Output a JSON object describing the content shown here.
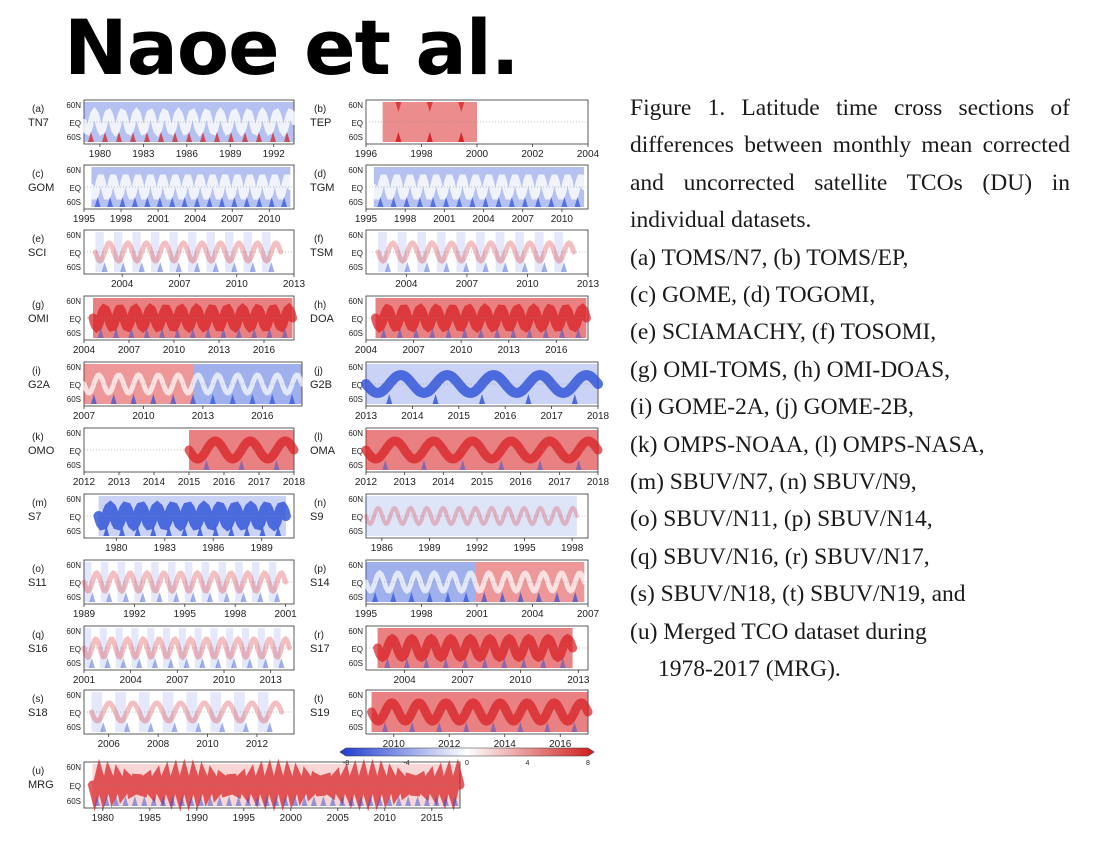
{
  "slide_title": "Naoe et al.",
  "caption": {
    "lead": "Figure 1. Latitude time cross sections of differences between monthly mean corrected and uncorrected satellite TCOs (DU) in individual datasets.",
    "items": [
      "(a) TOMS/N7, (b) TOMS/EP,",
      "(c) GOME, (d) TOGOMI,",
      "(e) SCIAMACHY, (f) TOSOMI,",
      "(g) OMI-TOMS, (h) OMI-DOAS,",
      "(i) GOME-2A, (j) GOME-2B,",
      "(k) OMPS-NOAA, (l) OMPS-NASA,",
      "(m) SBUV/N7, (n) SBUV/N9,",
      "(o) SBUV/N11, (p) SBUV/N14,",
      "(q) SBUV/N16, (r) SBUV/N17,",
      "(s) SBUV/N18, (t) SBUV/N19, and",
      "(u) Merged TCO dataset during"
    ],
    "last_line": "1978-2017 (MRG)."
  },
  "colors": {
    "positive": "#d7191c",
    "negative": "#2b50d8",
    "neutral": "#ffffff"
  },
  "chart_data": {
    "type": "heatmap",
    "lat_ticks": [
      "60N",
      "EQ",
      "60S"
    ],
    "colorbar": {
      "ticks": [
        "-8",
        "-4",
        "0",
        "4",
        "8"
      ],
      "range": [
        -8,
        8
      ]
    },
    "panels": [
      {
        "id": "(a)",
        "name": "TN7",
        "x_range": [
          1978.9,
          1993.4
        ],
        "data_range": [
          1978.9,
          1993.4
        ],
        "ticks": [
          "1980",
          "1983",
          "1986",
          "1989",
          "1992"
        ],
        "tick_values": [
          1980,
          1983,
          1986,
          1989,
          1992
        ]
      },
      {
        "id": "(b)",
        "name": "TEP",
        "x_range": [
          1996,
          2004
        ],
        "data_range": [
          1996.6,
          2000
        ],
        "ticks": [
          "1996",
          "1998",
          "2000",
          "2002",
          "2004"
        ],
        "tick_values": [
          1996,
          1998,
          2000,
          2002,
          2004
        ]
      },
      {
        "id": "(c)",
        "name": "GOM",
        "x_range": [
          1995,
          2012
        ],
        "data_range": [
          1995.6,
          2011.7
        ],
        "ticks": [
          "1995",
          "1998",
          "2001",
          "2004",
          "2007",
          "2010"
        ],
        "tick_values": [
          1995,
          1998,
          2001,
          2004,
          2007,
          2010
        ]
      },
      {
        "id": "(d)",
        "name": "TGM",
        "x_range": [
          1995,
          2012
        ],
        "data_range": [
          1995.6,
          2011.7
        ],
        "ticks": [
          "1995",
          "1998",
          "2001",
          "2004",
          "2007",
          "2010"
        ],
        "tick_values": [
          1995,
          1998,
          2001,
          2004,
          2007,
          2010
        ]
      },
      {
        "id": "(e)",
        "name": "SCI",
        "x_range": [
          2002,
          2013
        ],
        "data_range": [
          2002.6,
          2012.3
        ],
        "ticks": [
          "2004",
          "2007",
          "2010",
          "2013"
        ],
        "tick_values": [
          2004,
          2007,
          2010,
          2013
        ]
      },
      {
        "id": "(f)",
        "name": "TSM",
        "x_range": [
          2002,
          2013
        ],
        "data_range": [
          2002.6,
          2012.3
        ],
        "ticks": [
          "2004",
          "2007",
          "2010",
          "2013"
        ],
        "tick_values": [
          2004,
          2007,
          2010,
          2013
        ]
      },
      {
        "id": "(g)",
        "name": "OMI",
        "x_range": [
          2004,
          2018
        ],
        "data_range": [
          2004.6,
          2017.9
        ],
        "ticks": [
          "2004",
          "2007",
          "2010",
          "2013",
          "2016"
        ],
        "tick_values": [
          2004,
          2007,
          2010,
          2013,
          2016
        ]
      },
      {
        "id": "(h)",
        "name": "DOA",
        "x_range": [
          2004,
          2018
        ],
        "data_range": [
          2004.6,
          2017.9
        ],
        "ticks": [
          "2004",
          "2007",
          "2010",
          "2013",
          "2016"
        ],
        "tick_values": [
          2004,
          2007,
          2010,
          2013,
          2016
        ]
      },
      {
        "id": "(i)",
        "name": "G2A",
        "x_range": [
          2007,
          2018
        ],
        "data_range": [
          2007,
          2018
        ],
        "ticks": [
          "2007",
          "2010",
          "2013",
          "2016"
        ],
        "tick_values": [
          2007,
          2010,
          2013,
          2016
        ]
      },
      {
        "id": "(j)",
        "name": "G2B",
        "x_range": [
          2013,
          2018
        ],
        "data_range": [
          2013,
          2018
        ],
        "ticks": [
          "2013",
          "2014",
          "2015",
          "2016",
          "2017",
          "2018"
        ],
        "tick_values": [
          2013,
          2014,
          2015,
          2016,
          2017,
          2018
        ]
      },
      {
        "id": "(k)",
        "name": "OMO",
        "x_range": [
          2012,
          2018
        ],
        "data_range": [
          2015,
          2018
        ],
        "ticks": [
          "2012",
          "2013",
          "2014",
          "2015",
          "2016",
          "2017",
          "2018"
        ],
        "tick_values": [
          2012,
          2013,
          2014,
          2015,
          2016,
          2017,
          2018
        ]
      },
      {
        "id": "(l)",
        "name": "OMA",
        "x_range": [
          2012,
          2018
        ],
        "data_range": [
          2012,
          2018
        ],
        "ticks": [
          "2012",
          "2013",
          "2014",
          "2015",
          "2016",
          "2017",
          "2018"
        ],
        "tick_values": [
          2012,
          2013,
          2014,
          2015,
          2016,
          2017,
          2018
        ]
      },
      {
        "id": "(m)",
        "name": "S7",
        "x_range": [
          1978,
          1991
        ],
        "data_range": [
          1978.9,
          1990.5
        ],
        "ticks": [
          "1980",
          "1983",
          "1986",
          "1989"
        ],
        "tick_values": [
          1980,
          1983,
          1986,
          1989
        ]
      },
      {
        "id": "(n)",
        "name": "S9",
        "x_range": [
          1985,
          1999
        ],
        "data_range": [
          1985,
          1998.3
        ],
        "ticks": [
          "1986",
          "1989",
          "1992",
          "1995",
          "1998"
        ],
        "tick_values": [
          1986,
          1989,
          1992,
          1995,
          1998
        ]
      },
      {
        "id": "(o)",
        "name": "S11",
        "x_range": [
          1989,
          2001.5
        ],
        "data_range": [
          1989,
          2001
        ],
        "ticks": [
          "1989",
          "1992",
          "1995",
          "1998",
          "2001"
        ],
        "tick_values": [
          1989,
          1992,
          1995,
          1998,
          2001
        ]
      },
      {
        "id": "(p)",
        "name": "S14",
        "x_range": [
          1995,
          2007
        ],
        "data_range": [
          1995,
          2006.8
        ],
        "ticks": [
          "1995",
          "1998",
          "2001",
          "2004",
          "2007"
        ],
        "tick_values": [
          1995,
          1998,
          2001,
          2004,
          2007
        ]
      },
      {
        "id": "(q)",
        "name": "S16",
        "x_range": [
          2001,
          2014.5
        ],
        "data_range": [
          2001,
          2014.2
        ],
        "ticks": [
          "2001",
          "2004",
          "2007",
          "2010",
          "2013"
        ],
        "tick_values": [
          2001,
          2004,
          2007,
          2010,
          2013
        ]
      },
      {
        "id": "(r)",
        "name": "S17",
        "x_range": [
          2002,
          2013.5
        ],
        "data_range": [
          2002.6,
          2012.7
        ],
        "ticks": [
          "2004",
          "2007",
          "2010",
          "2013"
        ],
        "tick_values": [
          2004,
          2007,
          2010,
          2013
        ]
      },
      {
        "id": "(s)",
        "name": "S18",
        "x_range": [
          2005,
          2013.5
        ],
        "data_range": [
          2005.3,
          2013
        ],
        "ticks": [
          "2006",
          "2008",
          "2010",
          "2012"
        ],
        "tick_values": [
          2006,
          2008,
          2010,
          2012
        ]
      },
      {
        "id": "(t)",
        "name": "S19",
        "x_range": [
          2009,
          2017
        ],
        "data_range": [
          2009.2,
          2017
        ],
        "ticks": [
          "2010",
          "2012",
          "2014",
          "2016"
        ],
        "tick_values": [
          2010,
          2012,
          2014,
          2016
        ]
      },
      {
        "id": "(u)",
        "name": "MRG",
        "x_range": [
          1978,
          2018
        ],
        "data_range": [
          1978.9,
          2018
        ],
        "ticks": [
          "1980",
          "1985",
          "1990",
          "1995",
          "2000",
          "2005",
          "2010",
          "2015"
        ],
        "tick_values": [
          1980,
          1985,
          1990,
          1995,
          2000,
          2005,
          2010,
          2015
        ]
      }
    ]
  }
}
